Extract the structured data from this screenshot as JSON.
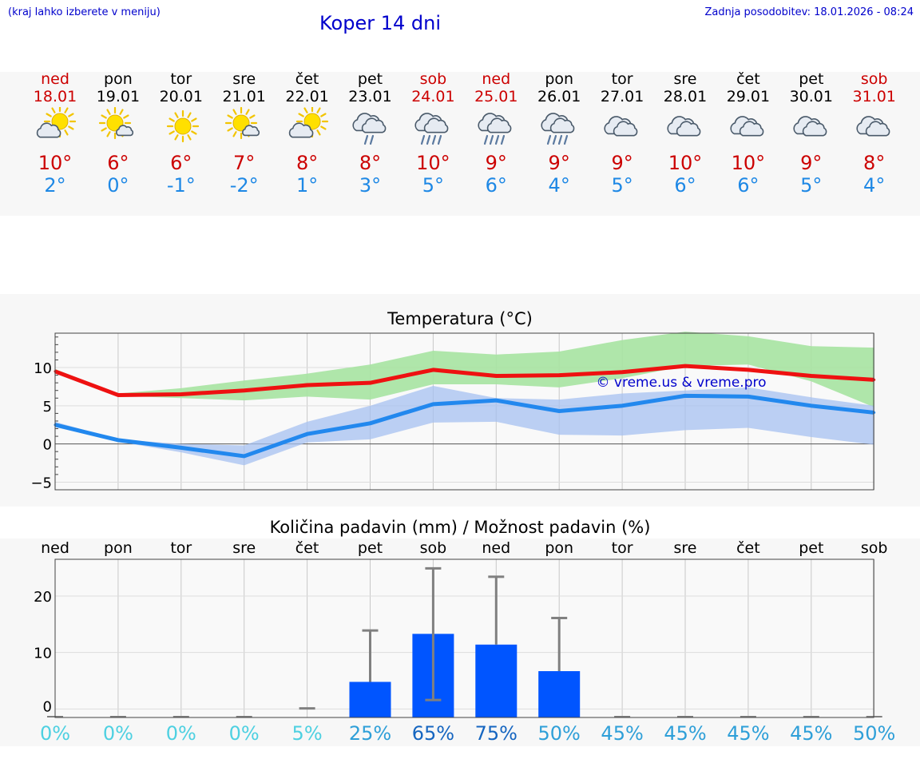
{
  "header": {
    "hint": "(kraj lahko izberete v meniju)",
    "title": "Koper 14 dni",
    "updated": "Zadnja posodobitev: 18.01.2026 - 08:24"
  },
  "colors": {
    "weekday": "#000000",
    "weekend": "#cc0000",
    "max_temp": "#cc0000",
    "min_temp": "#1e88e5",
    "max_line": "#ee1111",
    "min_line": "#2288ee",
    "max_band": "#a6e3a1",
    "min_band": "#a6c0f0",
    "bar": "#0055ff",
    "errbar": "#808080",
    "watermark": "#0000cc"
  },
  "days": [
    {
      "name": "ned",
      "date": "18.01",
      "weekend": true,
      "icon": "sun-cloud-icon",
      "max": "10°",
      "min": "2°"
    },
    {
      "name": "pon",
      "date": "19.01",
      "weekend": false,
      "icon": "sun-small-cloud-icon",
      "max": "6°",
      "min": "0°"
    },
    {
      "name": "tor",
      "date": "20.01",
      "weekend": false,
      "icon": "sun-icon",
      "max": "6°",
      "min": "-1°"
    },
    {
      "name": "sre",
      "date": "21.01",
      "weekend": false,
      "icon": "sun-small-cloud-icon",
      "max": "7°",
      "min": "-2°"
    },
    {
      "name": "čet",
      "date": "22.01",
      "weekend": false,
      "icon": "sun-cloud-icon",
      "max": "8°",
      "min": "1°"
    },
    {
      "name": "pet",
      "date": "23.01",
      "weekend": false,
      "icon": "cloud-light-rain-icon",
      "max": "8°",
      "min": "3°"
    },
    {
      "name": "sob",
      "date": "24.01",
      "weekend": true,
      "icon": "cloud-rain-icon",
      "max": "10°",
      "min": "5°"
    },
    {
      "name": "ned",
      "date": "25.01",
      "weekend": true,
      "icon": "cloud-rain-icon",
      "max": "9°",
      "min": "6°"
    },
    {
      "name": "pon",
      "date": "26.01",
      "weekend": false,
      "icon": "cloud-rain-icon",
      "max": "9°",
      "min": "4°"
    },
    {
      "name": "tor",
      "date": "27.01",
      "weekend": false,
      "icon": "cloud-icon",
      "max": "9°",
      "min": "5°"
    },
    {
      "name": "sre",
      "date": "28.01",
      "weekend": false,
      "icon": "cloud-icon",
      "max": "10°",
      "min": "6°"
    },
    {
      "name": "čet",
      "date": "29.01",
      "weekend": false,
      "icon": "cloud-icon",
      "max": "10°",
      "min": "6°"
    },
    {
      "name": "pet",
      "date": "30.01",
      "weekend": false,
      "icon": "cloud-icon",
      "max": "9°",
      "min": "5°"
    },
    {
      "name": "sob",
      "date": "31.01",
      "weekend": true,
      "icon": "cloud-icon",
      "max": "8°",
      "min": "4°"
    }
  ],
  "chart_data": [
    {
      "type": "line",
      "title": "Temperatura (°C)",
      "xlabel": "",
      "ylabel": "",
      "categories": [
        "18.01",
        "19.01",
        "20.01",
        "21.01",
        "22.01",
        "23.01",
        "24.01",
        "25.01",
        "26.01",
        "27.01",
        "28.01",
        "29.01",
        "30.01",
        "31.01"
      ],
      "ylim": [
        -6,
        14.5
      ],
      "yticks": [
        -5,
        0,
        5,
        10
      ],
      "ytick_labels": [
        "−5",
        "0",
        "5",
        "10"
      ],
      "grid": true,
      "watermark": "© vreme.us & vreme.pro",
      "series": [
        {
          "name": "max",
          "values": [
            9.5,
            6.4,
            6.5,
            7.0,
            7.7,
            8.0,
            9.7,
            8.9,
            9.0,
            9.4,
            10.2,
            9.7,
            8.9,
            8.4
          ],
          "band_low": [
            9.3,
            6.3,
            6.0,
            5.7,
            6.2,
            5.8,
            7.8,
            7.8,
            7.4,
            8.6,
            10.2,
            10.4,
            8.2,
            4.8
          ],
          "band_high": [
            9.8,
            6.6,
            7.3,
            8.3,
            9.2,
            10.4,
            12.2,
            11.7,
            12.1,
            13.6,
            14.7,
            14.1,
            12.8,
            12.6
          ]
        },
        {
          "name": "min",
          "values": [
            2.5,
            0.5,
            -0.5,
            -1.6,
            1.3,
            2.7,
            5.2,
            5.7,
            4.3,
            5.0,
            6.3,
            6.2,
            5.0,
            4.1
          ],
          "band_low": [
            2.2,
            0.3,
            -1.1,
            -2.8,
            0.2,
            0.6,
            2.8,
            2.9,
            1.2,
            1.1,
            1.8,
            2.1,
            0.9,
            -0.1
          ],
          "band_high": [
            2.9,
            0.6,
            0.0,
            -0.2,
            2.9,
            5.0,
            7.6,
            6.0,
            5.8,
            6.6,
            7.0,
            7.4,
            6.1,
            5.0
          ]
        }
      ]
    },
    {
      "type": "bar",
      "title": "Količina padavin (mm) / Možnost padavin (%)",
      "categories": [
        "ned",
        "pon",
        "tor",
        "sre",
        "čet",
        "pet",
        "sob",
        "ned",
        "pon",
        "tor",
        "sre",
        "čet",
        "pet",
        "sob"
      ],
      "ylim": [
        -1.5,
        26.5
      ],
      "yticks": [
        0,
        10,
        20
      ],
      "grid": true,
      "values": [
        0,
        0,
        0,
        0,
        0,
        4.8,
        13.3,
        11.4,
        6.7,
        0,
        0,
        0,
        0,
        0
      ],
      "err_low": [
        0,
        0,
        0,
        0,
        0,
        4.8,
        1.6,
        11.4,
        6.7,
        0,
        0,
        0,
        0,
        0
      ],
      "err_high": [
        0,
        0,
        0,
        0,
        0.1,
        13.9,
        24.9,
        23.4,
        16.1,
        0,
        0,
        0,
        0,
        0
      ],
      "probability": [
        "0%",
        "0%",
        "0%",
        "0%",
        "5%",
        "25%",
        "65%",
        "75%",
        "50%",
        "45%",
        "45%",
        "45%",
        "45%",
        "50%"
      ],
      "probability_colors": [
        "#4dd0e1",
        "#4dd0e1",
        "#4dd0e1",
        "#4dd0e1",
        "#4dd0e1",
        "#2e9fd8",
        "#1565c0",
        "#1565c0",
        "#2e9fd8",
        "#2e9fd8",
        "#2e9fd8",
        "#2e9fd8",
        "#2e9fd8",
        "#2e9fd8"
      ]
    }
  ]
}
